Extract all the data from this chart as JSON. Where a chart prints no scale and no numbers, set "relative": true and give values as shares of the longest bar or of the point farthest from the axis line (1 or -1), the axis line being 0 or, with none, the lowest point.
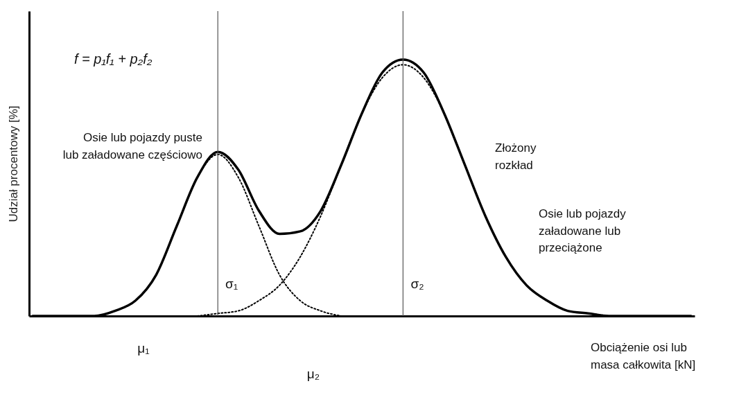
{
  "chart_data": {
    "type": "line",
    "relative": true,
    "xlabel": "Obciążenie osi lub masa całkowita [kN]",
    "ylabel": "Udział procentowy [%]",
    "categories": [
      null,
      null,
      null,
      null,
      null,
      null,
      null,
      null,
      null,
      null,
      null,
      null,
      null,
      null,
      null,
      null,
      null,
      null,
      null,
      null,
      null,
      null,
      null,
      null,
      null,
      null,
      null,
      null,
      null,
      null,
      null,
      null,
      null
    ],
    "series": [
      {
        "name": "Złożony rozkład",
        "color": "#000000",
        "line_style": "solid",
        "values": [
          0,
          0,
          0,
          0,
          0.02,
          0.06,
          0.16,
          0.35,
          0.54,
          0.64,
          0.57,
          0.41,
          0.32,
          0.33,
          0.41,
          0.59,
          0.79,
          0.95,
          1,
          0.95,
          0.79,
          0.59,
          0.39,
          0.23,
          0.12,
          0.06,
          0.02,
          0.01,
          0,
          0,
          0,
          0,
          0
        ]
      },
      {
        "name": "Osie lub pojazdy puste lub załadowane częściowo",
        "color": "#000000",
        "line_style": "dotted",
        "values": [
          null,
          null,
          0,
          0,
          0.02,
          0.06,
          0.16,
          0.35,
          0.54,
          0.63,
          0.54,
          0.35,
          0.16,
          0.06,
          0.02,
          0,
          null,
          null,
          null,
          null,
          null,
          null,
          null,
          null,
          null,
          null,
          null,
          null,
          null,
          null,
          null,
          null,
          null
        ]
      },
      {
        "name": "Osie lub pojazdy załadowane lub przeciążone",
        "color": "#000000",
        "line_style": "dotted",
        "values": [
          null,
          null,
          null,
          null,
          null,
          null,
          null,
          null,
          0,
          0.01,
          0.02,
          0.06,
          0.12,
          0.23,
          0.39,
          0.59,
          0.79,
          0.93,
          0.98,
          0.93,
          0.79,
          0.59,
          0.39,
          0.23,
          0.12,
          0.06,
          0.02,
          0.01,
          0,
          null,
          null,
          null,
          null
        ]
      }
    ],
    "annotations": [
      "f = p₁f₁ + p₂f₂",
      "σ₁",
      "σ₂",
      "μ₁",
      "μ₂"
    ]
  }
}
